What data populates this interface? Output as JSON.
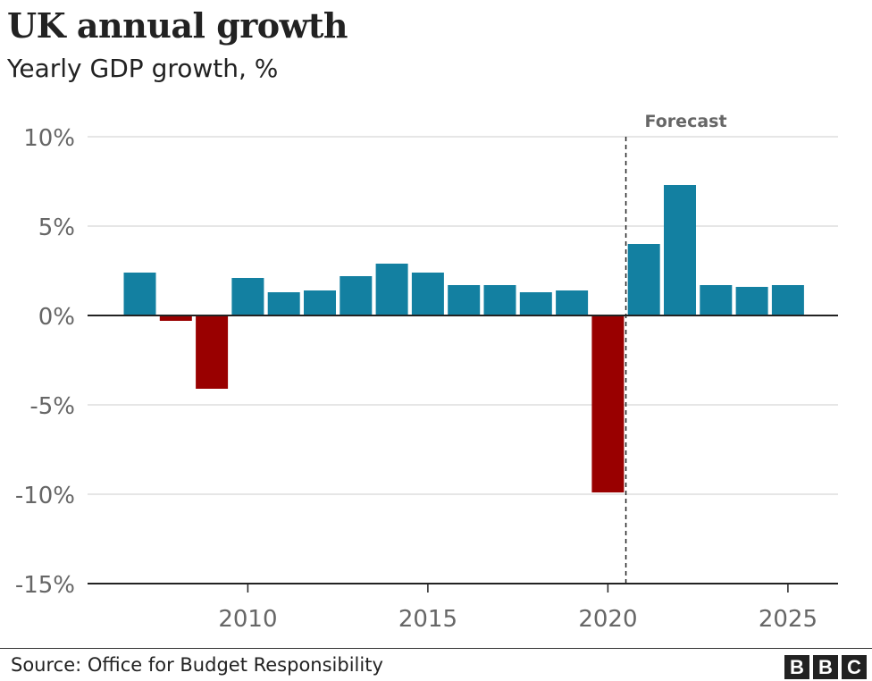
{
  "logo": "BBC",
  "source": "Source: Office for Budget Responsibility",
  "chart_data": {
    "type": "bar",
    "title": "UK annual growth",
    "subtitle": "Yearly GDP growth, %",
    "xlabel": "",
    "ylabel": "",
    "x": [
      2007,
      2008,
      2009,
      2010,
      2011,
      2012,
      2013,
      2014,
      2015,
      2016,
      2017,
      2018,
      2019,
      2020,
      2021,
      2022,
      2023,
      2024,
      2025
    ],
    "values": [
      2.4,
      -0.3,
      -4.1,
      2.1,
      1.3,
      1.4,
      2.2,
      2.9,
      2.4,
      1.7,
      1.7,
      1.3,
      1.4,
      -9.9,
      4.0,
      7.3,
      1.7,
      1.6,
      1.7
    ],
    "ylim": [
      -15,
      10
    ],
    "yticks": [
      10,
      5,
      0,
      -5,
      -10,
      -15
    ],
    "ytick_labels": [
      "10%",
      "5%",
      "0%",
      "-5%",
      "-10%",
      "-15%"
    ],
    "xticks": [
      2010,
      2015,
      2020,
      2025
    ],
    "xtick_labels": [
      "2010",
      "2015",
      "2020",
      "2025"
    ],
    "grid": true,
    "colors": {
      "positive": "#1380a1",
      "negative": "#990000"
    },
    "annotations": [
      {
        "text": "Forecast",
        "x_after": 2020,
        "style": "dashed-vertical-line"
      }
    ]
  }
}
